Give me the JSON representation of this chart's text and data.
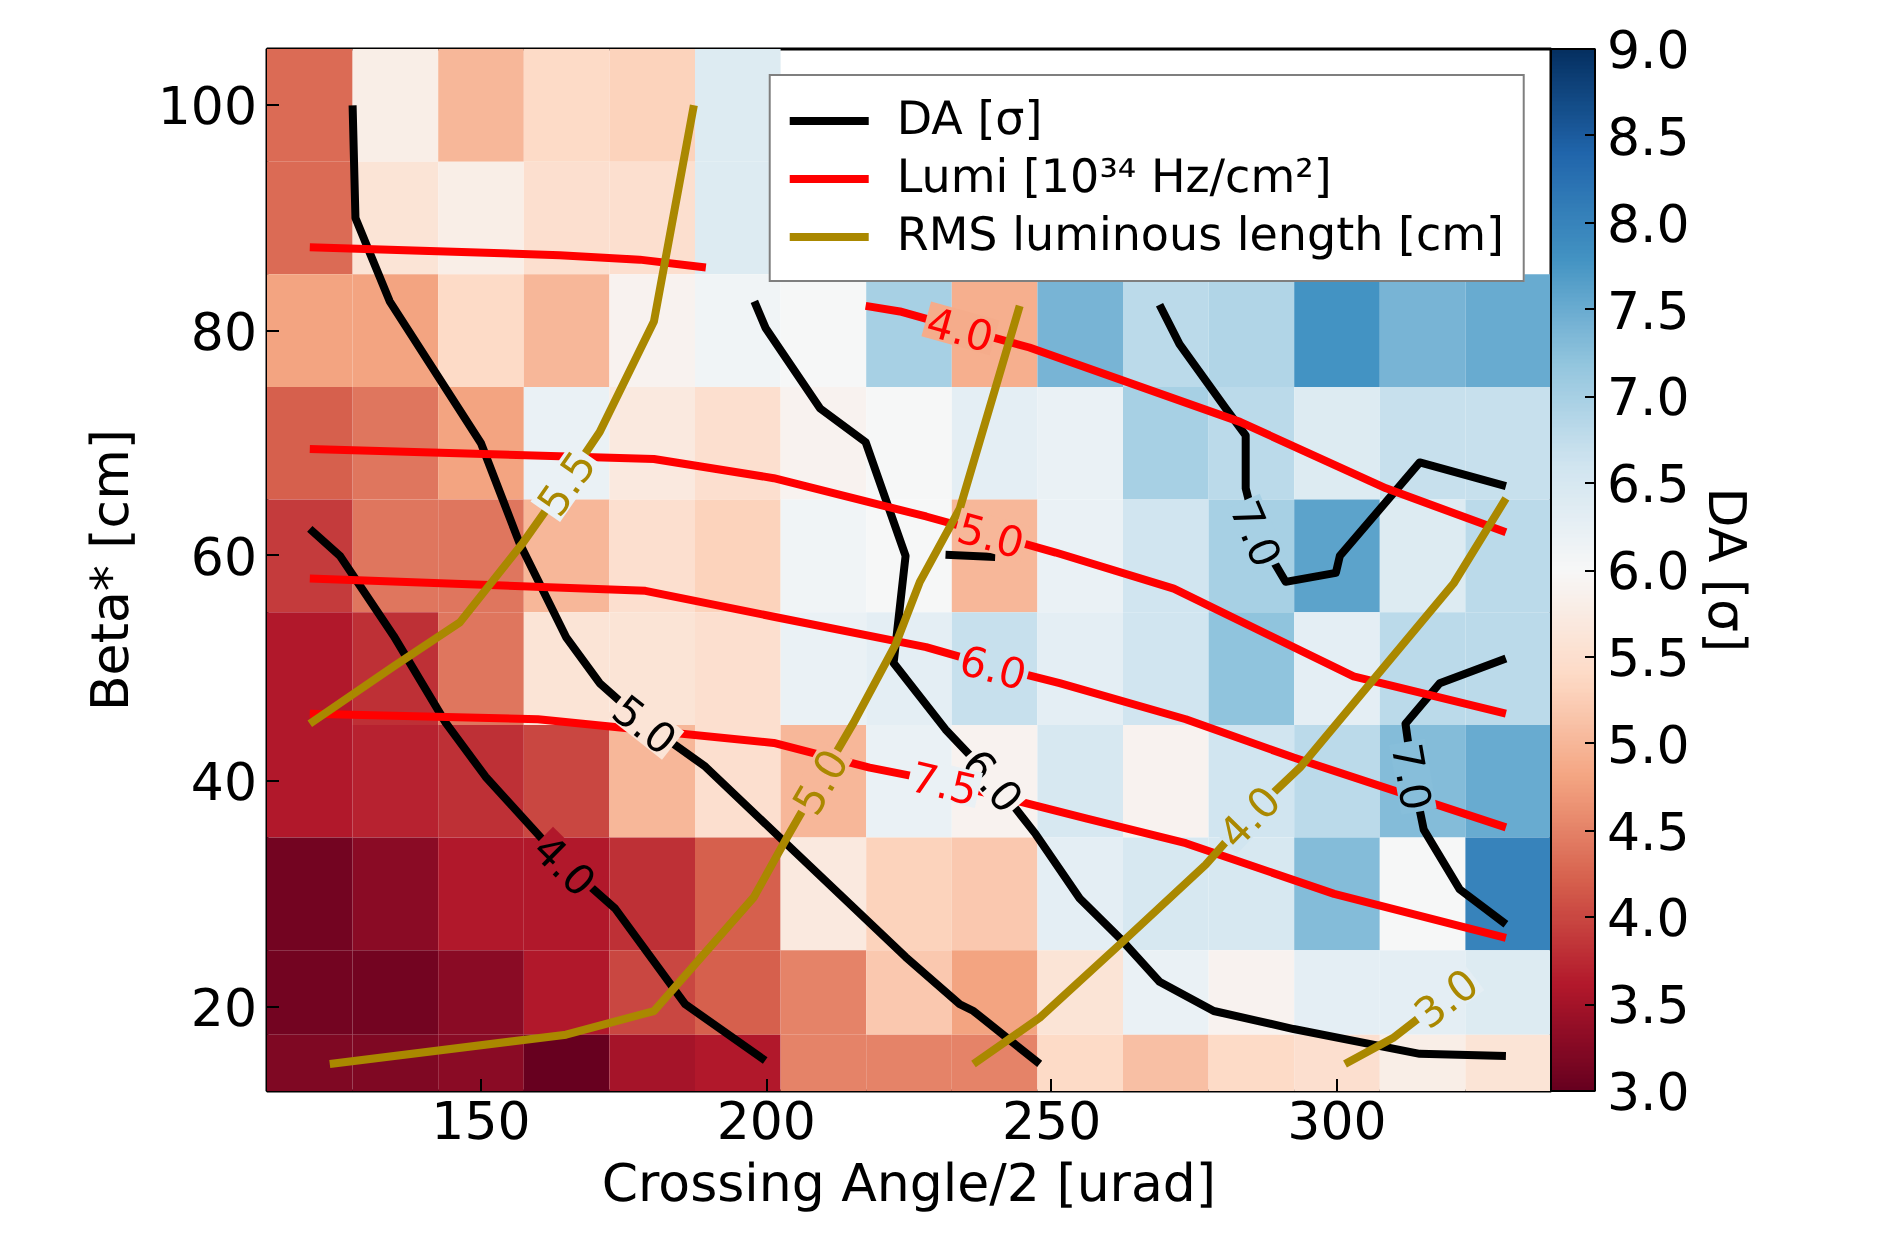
{
  "chart_data": {
    "type": "heatmap",
    "xlabel": "Crossing Angle/2 [urad]",
    "ylabel": "Beta* [cm]",
    "clabel": "DA [σ]",
    "x": [
      120,
      135,
      150,
      165,
      180,
      195,
      210,
      225,
      240,
      255,
      270,
      285,
      300,
      315,
      330
    ],
    "y": [
      100,
      90,
      80,
      70,
      60,
      50,
      40,
      30,
      20,
      15
    ],
    "cells": [
      [
        4.3,
        5.8,
        5.0,
        5.4,
        5.3,
        6.4,
        null,
        null,
        null,
        null,
        null,
        null,
        null,
        null,
        null
      ],
      [
        4.3,
        5.6,
        5.8,
        5.5,
        5.5,
        6.4,
        null,
        null,
        null,
        null,
        null,
        null,
        null,
        null,
        null
      ],
      [
        4.8,
        4.8,
        5.4,
        5.0,
        5.9,
        6.1,
        6.0,
        7.0,
        4.9,
        7.4,
        6.8,
        6.9,
        7.8,
        7.4,
        7.5
      ],
      [
        4.2,
        4.4,
        4.8,
        6.2,
        5.7,
        5.5,
        5.9,
        6.0,
        6.3,
        6.2,
        7.0,
        6.8,
        6.4,
        6.7,
        6.7
      ],
      [
        3.9,
        4.4,
        4.4,
        5.0,
        5.5,
        5.3,
        6.1,
        6.0,
        5.0,
        6.2,
        6.6,
        7.0,
        7.6,
        6.4,
        6.8
      ],
      [
        3.6,
        3.8,
        4.4,
        5.6,
        5.6,
        5.5,
        6.2,
        6.3,
        6.7,
        6.3,
        6.6,
        7.2,
        6.3,
        6.8,
        6.8
      ],
      [
        3.6,
        3.7,
        3.8,
        4.0,
        5.0,
        5.5,
        5.0,
        6.2,
        5.9,
        6.5,
        5.9,
        6.6,
        6.8,
        7.3,
        7.5
      ],
      [
        3.1,
        3.3,
        3.6,
        3.6,
        3.8,
        4.2,
        5.7,
        5.3,
        5.2,
        6.3,
        6.5,
        6.5,
        7.3,
        6.0,
        8.0
      ],
      [
        3.1,
        3.1,
        3.3,
        3.6,
        4.0,
        4.2,
        4.5,
        5.2,
        4.8,
        5.6,
        6.2,
        5.9,
        6.3,
        6.3,
        6.4
      ],
      [
        3.2,
        3.2,
        3.3,
        3.0,
        3.5,
        3.6,
        4.5,
        4.5,
        4.5,
        5.4,
        5.1,
        5.4,
        5.5,
        5.8,
        5.6
      ]
    ],
    "clim": [
      3,
      9
    ],
    "cticks": [
      {
        "value": 3,
        "label": "3.0"
      },
      {
        "value": 3.5,
        "label": "3.5"
      },
      {
        "value": 4,
        "label": "4.0"
      },
      {
        "value": 4.5,
        "label": "4.5"
      },
      {
        "value": 5,
        "label": "5.0"
      },
      {
        "value": 5.5,
        "label": "5.5"
      },
      {
        "value": 6,
        "label": "6.0"
      },
      {
        "value": 6.5,
        "label": "6.5"
      },
      {
        "value": 7,
        "label": "7.0"
      },
      {
        "value": 7.5,
        "label": "7.5"
      },
      {
        "value": 8,
        "label": "8.0"
      },
      {
        "value": 8.5,
        "label": "8.5"
      },
      {
        "value": 9,
        "label": "9.0"
      }
    ],
    "xlim": [
      112.5,
      337.5
    ],
    "ylim": [
      12.5,
      105
    ],
    "xticks": [
      150,
      200,
      250,
      300
    ],
    "yticks": [
      20,
      40,
      60,
      80,
      100
    ],
    "legend": "top right",
    "series": [
      {
        "type": "line",
        "name": "DA [σ]",
        "color": "#000000",
        "x": [
          127.5,
          128,
          134,
          150,
          156.7,
          164.9,
          170.8,
          178.8,
          189.3,
          203.4,
          224.4,
          233.9,
          236.3,
          247.9,
          null,
          120,
          125.3,
          134.7,
          143.8,
          150.8,
          156,
          164.8,
          173.5,
          185.8,
          199.8,
          null,
          197.9,
          199.9,
          209.4,
          217.4,
          224.4,
          222.3,
          231.4,
          239.8,
          247.2,
          254.9,
          261.9,
          268.9,
          278.4,
          292.4,
          314.5,
          329.6,
          null,
          231.4,
          240.1,
          null,
          268.9,
          272.4,
          280.5,
          284,
          284,
          286,
          291,
          299.8,
          300.5,
          314.5,
          329.6,
          null,
          329.6,
          318,
          312,
          313.3,
          315.2,
          321.5,
          329.6
        ],
        "values": [
          100,
          90,
          82.6,
          70,
          61.2,
          52.8,
          48.7,
          45.1,
          41.3,
          34.5,
          24.4,
          20.2,
          19.6,
          14.9,
          null,
          62.4,
          60,
          52.9,
          45.2,
          40.4,
          37.5,
          32.6,
          28.7,
          20.2,
          15.2,
          null,
          82.6,
          80.2,
          73.1,
          70.1,
          60,
          50.5,
          44.6,
          40.1,
          35.3,
          29.6,
          26.1,
          22.2,
          19.6,
          18.0,
          15.8,
          15.6,
          null,
          60.1,
          59.9,
          null,
          82.3,
          78.8,
          73.1,
          70.7,
          66,
          62,
          57.7,
          58.5,
          60,
          68.3,
          66.2,
          null,
          50.9,
          48.7,
          45.1,
          40.4,
          35.7,
          30.4,
          27.3
        ]
      },
      {
        "type": "line",
        "name": "Lumi [10³⁴ Hz/cm²]",
        "color": "#ff0000",
        "x": [
          120,
          163.8,
          177.8,
          189.4,
          null,
          217.4,
          223.4,
          234,
          246.1,
          283,
          308.6,
          329.6,
          null,
          120,
          180.3,
          201.3,
          228,
          239.4,
          250.7,
          271.4,
          302.9,
          329.6,
          null,
          120,
          178.8,
          201.3,
          228,
          239.8,
          251.4,
          273.5,
          292.4,
          329.6,
          null,
          120,
          160,
          201.3,
          218.1,
          231.2,
          256,
          273.5,
          299.5,
          329.6
        ],
        "values": [
          87.4,
          86.7,
          86.3,
          85.6,
          null,
          82.2,
          81.7,
          80.2,
          78.5,
          71.9,
          66.0,
          62.1,
          null,
          69.5,
          68.6,
          66.9,
          63.5,
          61.9,
          60.3,
          57.1,
          49.3,
          46.0,
          null,
          58,
          56.9,
          54.6,
          51.9,
          50.2,
          48.7,
          45.5,
          42.1,
          35.9,
          null,
          46.0,
          45.5,
          43.4,
          41.2,
          39.9,
          36.7,
          34.5,
          30.0,
          26.1
        ]
      },
      {
        "type": "line",
        "name": "RMS luminous length [cm]",
        "color": "#aa8800",
        "x": [
          187.3,
          180.3,
          170.8,
          164.8,
          157.4,
          146.3,
          134.7,
          120,
          null,
          244.4,
          233.9,
          226.9,
          222.7,
          215.3,
          209.3,
          203.4,
          197.8,
          180.3,
          164.9,
          123.5,
          null,
          329.6,
          320.5,
          293.5,
          284.5,
          277,
          261.9,
          247.9,
          236.3,
          null,
          301.4,
          309.8,
          319
        ],
        "values": [
          100,
          80.8,
          71,
          66.5,
          61.2,
          54.1,
          50.2,
          45.1,
          null,
          82.2,
          64.2,
          57.7,
          52.2,
          45.2,
          40.0,
          34.8,
          29.7,
          19.6,
          17.5,
          14.9,
          null,
          65.1,
          57.6,
          41.2,
          36.9,
          32.6,
          25.5,
          19.0,
          14.9,
          null,
          14.9,
          17.2,
          20.8
        ]
      }
    ],
    "annotations": [
      {
        "text": "5.0",
        "x": 178.8,
        "y": 45.1
      },
      {
        "text": "4.0",
        "x": 164.8,
        "y": 32.6
      },
      {
        "text": "6.0",
        "x": 239.8,
        "y": 40.1
      },
      {
        "text": "7.0",
        "x": 286,
        "y": 62
      },
      {
        "text": "7.0",
        "x": 313.3,
        "y": 40.4
      },
      {
        "text": "4.0",
        "x": 234,
        "y": 80.2
      },
      {
        "text": "5.0",
        "x": 239.4,
        "y": 61.9
      },
      {
        "text": "6.0",
        "x": 239.8,
        "y": 50.2
      },
      {
        "text": "7.5",
        "x": 231.2,
        "y": 39.9
      },
      {
        "text": "5.5",
        "x": 164.8,
        "y": 66.5
      },
      {
        "text": "5.0",
        "x": 209.3,
        "y": 40.0
      },
      {
        "text": "4.0",
        "x": 284.5,
        "y": 36.9
      },
      {
        "text": "3.0",
        "x": 319,
        "y": 20.8
      }
    ]
  }
}
